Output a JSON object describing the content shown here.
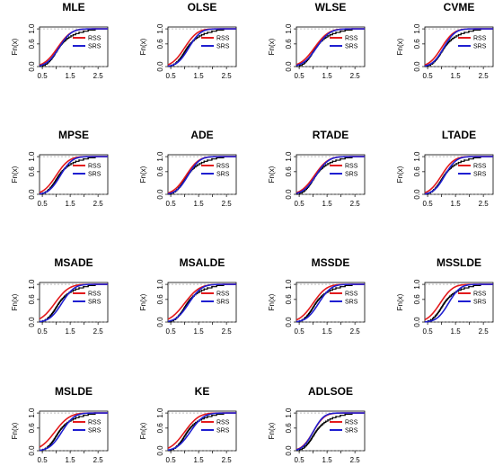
{
  "figure": {
    "ylabel": "Fn(x)"
  },
  "chart_data": {
    "type": "line",
    "layout": {
      "rows": 4,
      "cols": 4
    },
    "chart_kind": "empirical cumulative distribution function (step)",
    "xlim": [
      0.4,
      2.85
    ],
    "ylim": [
      0,
      1.05
    ],
    "xticks": [
      0.5,
      1.5,
      2.5
    ],
    "xtick_labels": [
      "0.5",
      "1.5",
      "2.5"
    ],
    "xticks_minor": [
      1.0,
      2.0
    ],
    "yticks": [
      0.0,
      0.6,
      1.0
    ],
    "ytick_labels": [
      "0.0",
      "0.6",
      "1.0"
    ],
    "ylabel": "Fn(x)",
    "legend_position": "top-right",
    "legend_entries": [
      {
        "name": "RSS",
        "color": "#e31a1c"
      },
      {
        "name": "SRS",
        "color": "#1f1fd1"
      }
    ],
    "empirical_color": "#000000",
    "panels": [
      {
        "title": "MLE",
        "rss": {
          "mu": 1.05,
          "s": 0.38
        },
        "srs": {
          "mu": 1.1,
          "s": 0.35
        }
      },
      {
        "title": "OLSE",
        "rss": {
          "mu": 1.0,
          "s": 0.36
        },
        "srs": {
          "mu": 1.15,
          "s": 0.33
        }
      },
      {
        "title": "WLSE",
        "rss": {
          "mu": 1.05,
          "s": 0.4
        },
        "srs": {
          "mu": 1.12,
          "s": 0.38
        }
      },
      {
        "title": "CVME",
        "rss": {
          "mu": 1.0,
          "s": 0.35
        },
        "srs": {
          "mu": 1.08,
          "s": 0.32
        }
      },
      {
        "title": "MPSE",
        "rss": {
          "mu": 1.0,
          "s": 0.36
        },
        "srs": {
          "mu": 1.15,
          "s": 0.33
        }
      },
      {
        "title": "ADE",
        "rss": {
          "mu": 1.05,
          "s": 0.36
        },
        "srs": {
          "mu": 1.12,
          "s": 0.33
        }
      },
      {
        "title": "RTADE",
        "rss": {
          "mu": 1.05,
          "s": 0.38
        },
        "srs": {
          "mu": 1.1,
          "s": 0.36
        }
      },
      {
        "title": "LTADE",
        "rss": {
          "mu": 1.0,
          "s": 0.35
        },
        "srs": {
          "mu": 1.12,
          "s": 0.32
        }
      },
      {
        "title": "MSADE",
        "rss": {
          "mu": 0.95,
          "s": 0.4
        },
        "srs": {
          "mu": 1.2,
          "s": 0.35
        }
      },
      {
        "title": "MSALDE",
        "rss": {
          "mu": 1.0,
          "s": 0.42
        },
        "srs": {
          "mu": 1.15,
          "s": 0.36
        }
      },
      {
        "title": "MSSDE",
        "rss": {
          "mu": 1.0,
          "s": 0.38
        },
        "srs": {
          "mu": 1.2,
          "s": 0.35
        }
      },
      {
        "title": "MSSLDE",
        "rss": {
          "mu": 0.95,
          "s": 0.36
        },
        "srs": {
          "mu": 1.25,
          "s": 0.33
        }
      },
      {
        "title": "MSLDE",
        "rss": {
          "mu": 0.95,
          "s": 0.42
        },
        "srs": {
          "mu": 1.2,
          "s": 0.35
        }
      },
      {
        "title": "KE",
        "rss": {
          "mu": 1.0,
          "s": 0.4
        },
        "srs": {
          "mu": 1.2,
          "s": 0.38
        }
      },
      {
        "title": "ADLSOE",
        "rss": {
          "mu": 1.0,
          "s": 0.32
        },
        "srs": {
          "mu": 1.0,
          "s": 0.3
        }
      }
    ],
    "sample": [
      0.52,
      0.61,
      0.68,
      0.72,
      0.77,
      0.8,
      0.84,
      0.87,
      0.9,
      0.93,
      0.96,
      0.98,
      1.01,
      1.04,
      1.06,
      1.09,
      1.12,
      1.15,
      1.18,
      1.22,
      1.26,
      1.3,
      1.35,
      1.4,
      1.46,
      1.53,
      1.61,
      1.7,
      1.82,
      1.98,
      2.15,
      2.4
    ]
  }
}
